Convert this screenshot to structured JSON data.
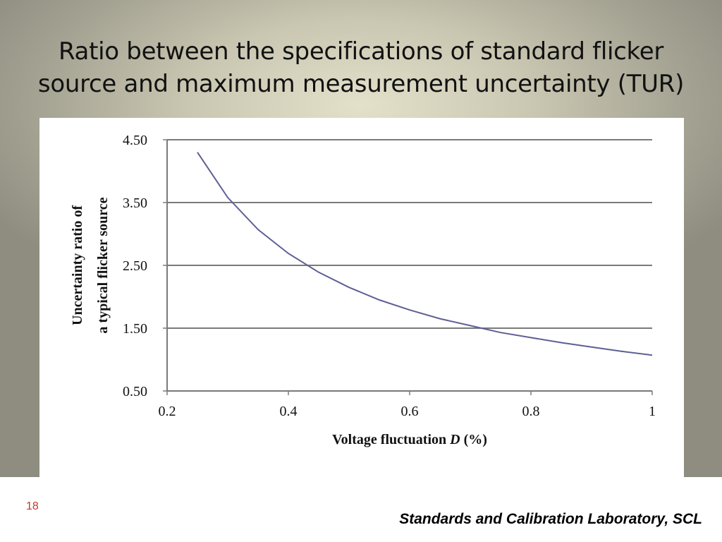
{
  "slide": {
    "title_line_1": "Ratio between the specifications of standard flicker",
    "title_line_2": "source and maximum measurement uncertainty (TUR)",
    "page_number": "18",
    "footer": "Standards and Calibration Laboratory, SCL",
    "background_color": "#c9c6b1",
    "page_number_color": "#c0392b"
  },
  "chart_data": {
    "type": "line",
    "title": "",
    "xlabel_parts": [
      "Voltage fluctuation ",
      "D",
      " (%)"
    ],
    "ylabel_lines": [
      "Uncertainty ratio of",
      "a typical flicker source"
    ],
    "xlim": [
      0.2,
      1.0
    ],
    "ylim": [
      0.5,
      4.5
    ],
    "xticks": [
      "0.2",
      "0.4",
      "0.6",
      "0.8",
      "1"
    ],
    "yticks": [
      "0.50",
      "1.50",
      "2.50",
      "3.50",
      "4.50"
    ],
    "grid": true,
    "legend": "none",
    "line_color": "#5e5f94",
    "series": [
      {
        "x": [
          0.25,
          0.3,
          0.35,
          0.4,
          0.45,
          0.5,
          0.55,
          0.6,
          0.65,
          0.7,
          0.75,
          0.8,
          0.85,
          0.9,
          0.95,
          1.0
        ],
        "values": [
          4.3,
          3.58,
          3.07,
          2.69,
          2.39,
          2.15,
          1.95,
          1.79,
          1.65,
          1.54,
          1.43,
          1.35,
          1.27,
          1.2,
          1.13,
          1.07
        ]
      }
    ]
  }
}
